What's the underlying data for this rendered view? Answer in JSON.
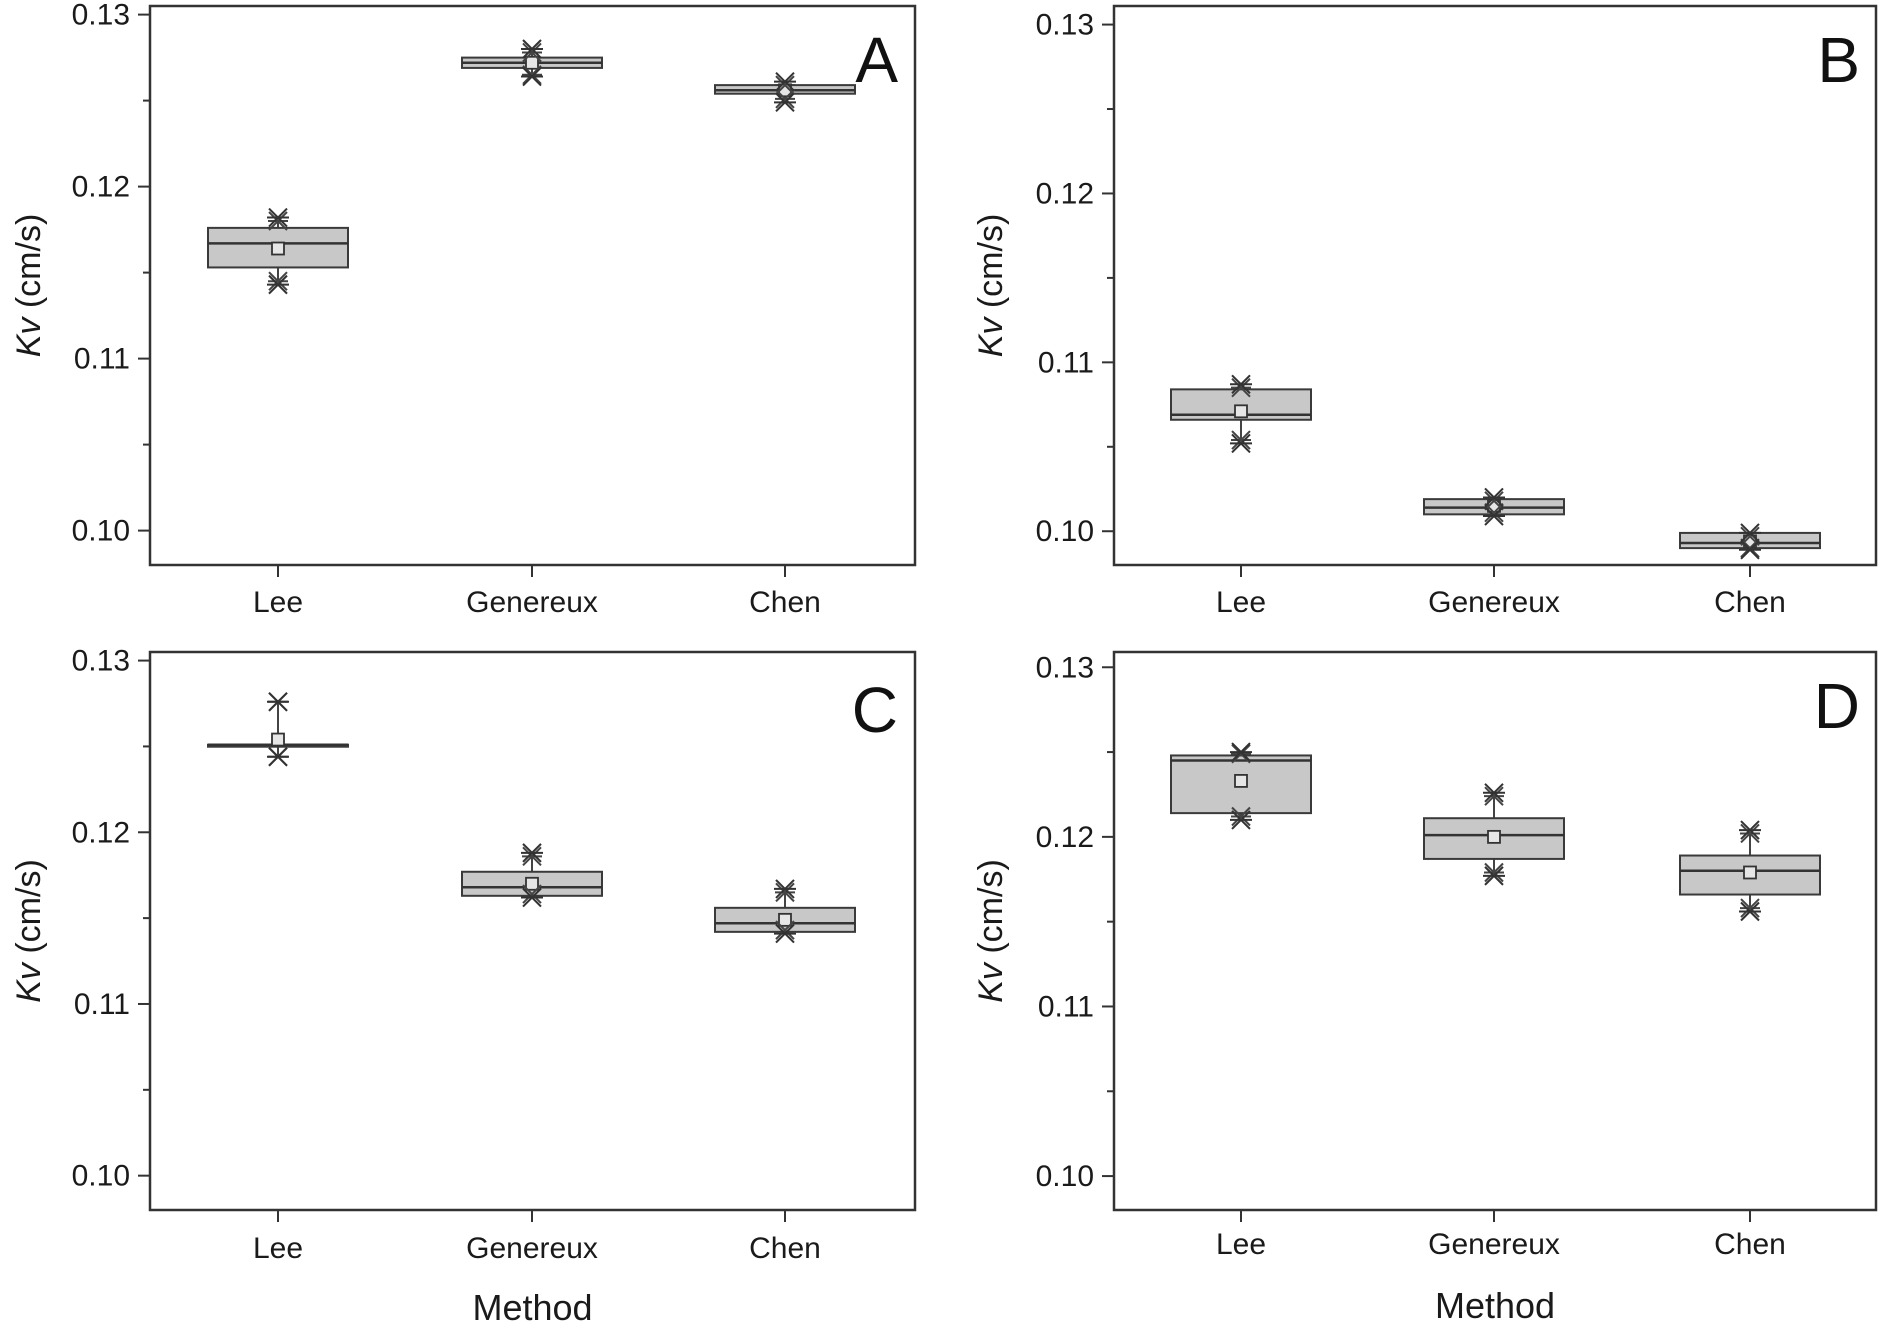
{
  "chart_data": [
    {
      "type": "box",
      "panel_label": "A",
      "categories": [
        "Lee",
        "Genereux",
        "Chen"
      ],
      "ylabel_italic": "Kv",
      "ylabel_unit": " (cm/s)",
      "xlabel": "",
      "ylim": [
        0.098,
        0.1305
      ],
      "yticks": [
        0.1,
        0.11,
        0.12,
        0.13
      ],
      "ytick_labels": [
        "0.10",
        "0.11",
        "0.12",
        "0.13"
      ],
      "boxes": [
        {
          "category": "Lee",
          "q1": 0.1153,
          "median": 0.1167,
          "q3": 0.1176,
          "mean": 0.1164,
          "max": 0.1182,
          "p99": 0.118,
          "min": 0.1143,
          "p1": 0.1145
        },
        {
          "category": "Genereux",
          "q1": 0.1269,
          "median": 0.1272,
          "q3": 0.1275,
          "mean": 0.1272,
          "max": 0.128,
          "p99": 0.1278,
          "min": 0.1264,
          "p1": 0.1265
        },
        {
          "category": "Chen",
          "q1": 0.1254,
          "median": 0.1256,
          "q3": 0.1259,
          "mean": 0.1256,
          "max": 0.1261,
          "p99": 0.1259,
          "min": 0.1249,
          "p1": 0.1251
        }
      ]
    },
    {
      "type": "box",
      "panel_label": "B",
      "categories": [
        "Lee",
        "Genereux",
        "Chen"
      ],
      "ylabel_italic": "Kv",
      "ylabel_unit": " (cm/s)",
      "xlabel": "",
      "ylim": [
        0.098,
        0.1311
      ],
      "yticks": [
        0.1,
        0.11,
        0.12,
        0.13
      ],
      "ytick_labels": [
        "0.10",
        "0.11",
        "0.12",
        "0.13"
      ],
      "boxes": [
        {
          "category": "Lee",
          "q1": 0.1066,
          "median": 0.1069,
          "q3": 0.1084,
          "mean": 0.1071,
          "max": 0.1087,
          "p99": 0.1085,
          "min": 0.1052,
          "p1": 0.1054
        },
        {
          "category": "Genereux",
          "q1": 0.101,
          "median": 0.1014,
          "q3": 0.1019,
          "mean": 0.1015,
          "max": 0.102,
          "p99": 0.1018,
          "min": 0.1009,
          "p1": 0.1011
        },
        {
          "category": "Chen",
          "q1": 0.099,
          "median": 0.0993,
          "q3": 0.0999,
          "mean": 0.0994,
          "max": 0.0999,
          "p99": 0.0997,
          "min": 0.0989,
          "p1": 0.099
        }
      ]
    },
    {
      "type": "box",
      "panel_label": "C",
      "categories": [
        "Lee",
        "Genereux",
        "Chen"
      ],
      "ylabel_italic": "Kv",
      "ylabel_unit": " (cm/s)",
      "xlabel": "Method",
      "ylim": [
        0.098,
        0.1305
      ],
      "yticks": [
        0.1,
        0.11,
        0.12,
        0.13
      ],
      "ytick_labels": [
        "0.10",
        "0.11",
        "0.12",
        "0.13"
      ],
      "boxes": [
        {
          "category": "Lee",
          "q1": 0.1251,
          "median": 0.1251,
          "q3": 0.1251,
          "mean": 0.1254,
          "max": 0.1276,
          "p99": 0.1276,
          "min": 0.1244,
          "p1": 0.1244
        },
        {
          "category": "Genereux",
          "q1": 0.1163,
          "median": 0.1168,
          "q3": 0.1177,
          "mean": 0.117,
          "max": 0.1188,
          "p99": 0.1186,
          "min": 0.1162,
          "p1": 0.1164
        },
        {
          "category": "Chen",
          "q1": 0.1142,
          "median": 0.1147,
          "q3": 0.1156,
          "mean": 0.1149,
          "max": 0.1167,
          "p99": 0.1165,
          "min": 0.1141,
          "p1": 0.1143
        }
      ]
    },
    {
      "type": "box",
      "panel_label": "D",
      "categories": [
        "Lee",
        "Genereux",
        "Chen"
      ],
      "ylabel_italic": "Kv",
      "ylabel_unit": " (cm/s)",
      "xlabel": "Method",
      "ylim": [
        0.098,
        0.1309
      ],
      "yticks": [
        0.1,
        0.11,
        0.12,
        0.13
      ],
      "ytick_labels": [
        "0.10",
        "0.11",
        "0.12",
        "0.13"
      ],
      "boxes": [
        {
          "category": "Lee",
          "q1": 0.1214,
          "median": 0.1245,
          "q3": 0.1248,
          "mean": 0.1233,
          "max": 0.125,
          "p99": 0.1249,
          "min": 0.121,
          "p1": 0.1212
        },
        {
          "category": "Genereux",
          "q1": 0.1187,
          "median": 0.1201,
          "q3": 0.1211,
          "mean": 0.12,
          "max": 0.1226,
          "p99": 0.1224,
          "min": 0.1177,
          "p1": 0.1179
        },
        {
          "category": "Chen",
          "q1": 0.1166,
          "median": 0.118,
          "q3": 0.1189,
          "mean": 0.1179,
          "max": 0.1204,
          "p99": 0.1202,
          "min": 0.1156,
          "p1": 0.1158
        }
      ]
    }
  ]
}
